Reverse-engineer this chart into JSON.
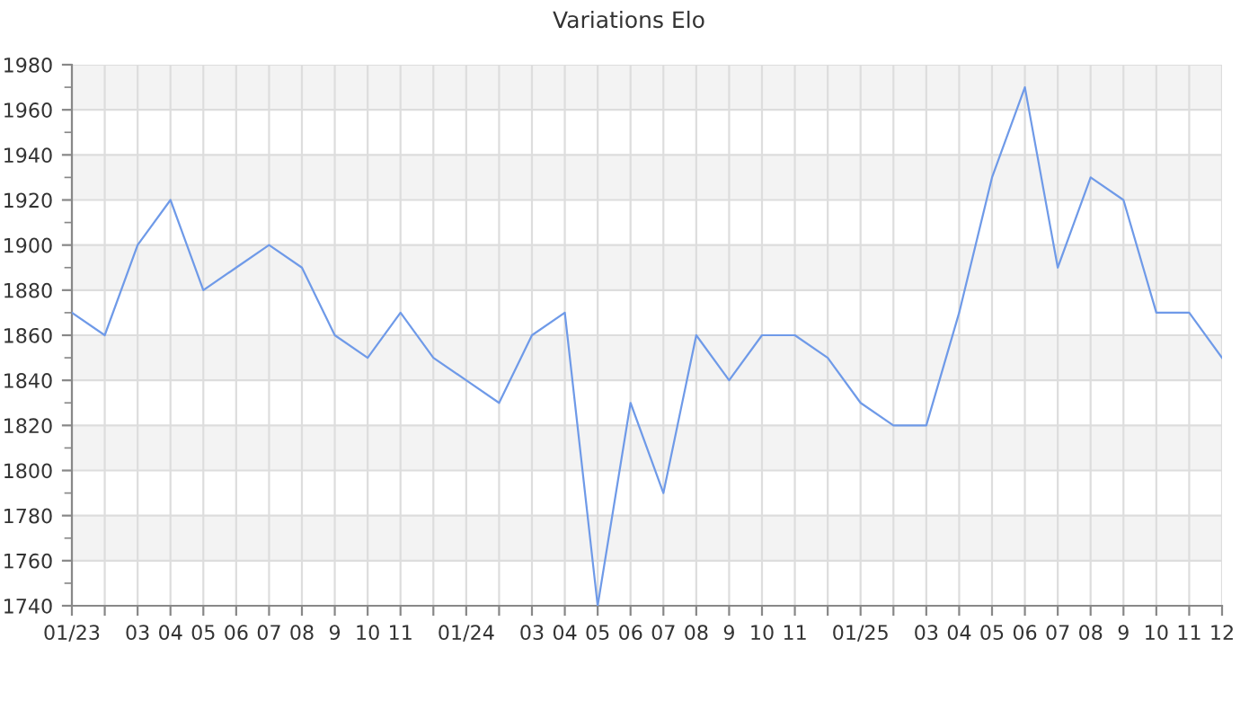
{
  "chart_data": {
    "type": "line",
    "title": "Variations Elo",
    "categories": [
      "01/23",
      null,
      "03",
      "04",
      "05",
      "06",
      "07",
      "08",
      "9",
      "10",
      "11",
      null,
      "01/24",
      null,
      "03",
      "04",
      "05",
      "06",
      "07",
      "08",
      "9",
      "10",
      "11",
      null,
      "01/25",
      null,
      "03",
      "04",
      "05",
      "06",
      "07",
      "08",
      "9",
      "10",
      "11",
      "12"
    ],
    "series": [
      {
        "color": "#6f9ae8",
        "values": [
          1870,
          1860,
          1900,
          1920,
          1880,
          1890,
          1900,
          1890,
          1860,
          1850,
          1870,
          1850,
          1840,
          1830,
          1860,
          1870,
          1740,
          1830,
          1790,
          1860,
          1840,
          1860,
          1860,
          1850,
          1830,
          1820,
          1820,
          1870,
          1930,
          1970,
          1890,
          1930,
          1920,
          1870,
          1870,
          1850
        ]
      }
    ],
    "ylim": [
      1740,
      1980
    ],
    "yticks": [
      1740,
      1760,
      1780,
      1800,
      1820,
      1840,
      1860,
      1880,
      1900,
      1920,
      1940,
      1960,
      1980
    ],
    "grid": true,
    "marker": "none",
    "line_style": "solid",
    "legend": false
  }
}
